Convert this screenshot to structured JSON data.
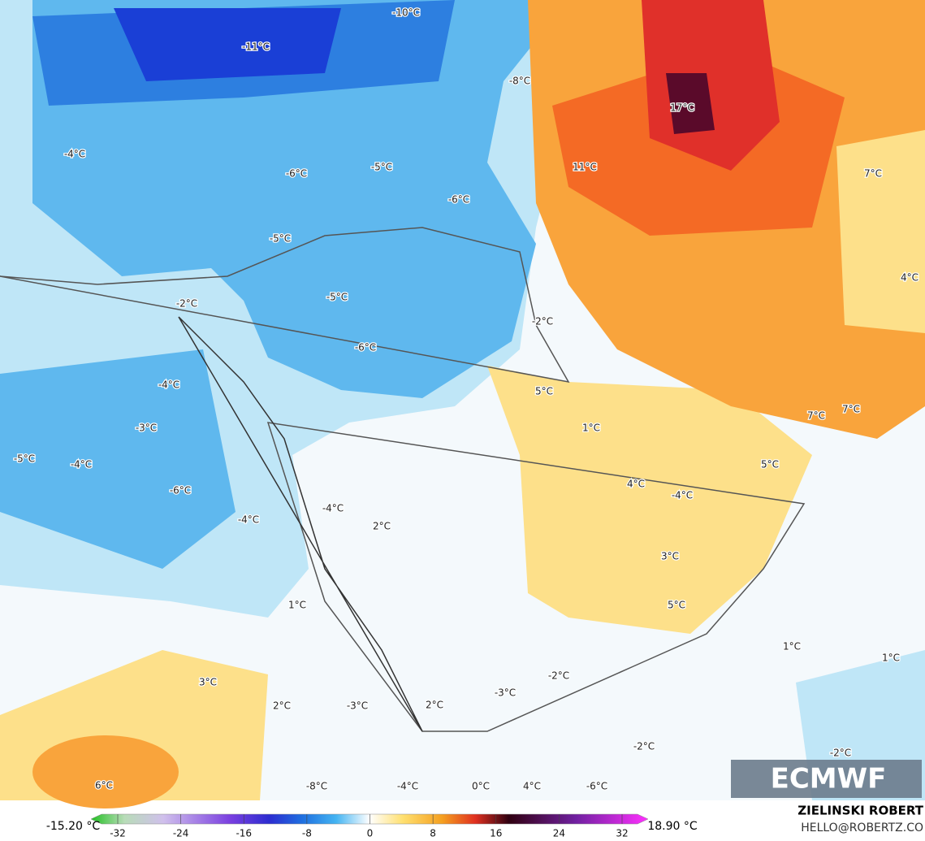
{
  "map": {
    "labels": [
      "-10°C",
      "-11°C",
      "-8°C",
      "17°C",
      "-4°C",
      "-6°C",
      "-5°C",
      "-6°C",
      "11°C",
      "7°C",
      "-5°C",
      "4°C",
      "-2°C",
      "-5°C",
      "-2°C",
      "-6°C",
      "-4°C",
      "5°C",
      "-3°C",
      "1°C",
      "7°C",
      "7°C",
      "-5°C",
      "-4°C",
      "5°C",
      "4°C",
      "-4°C",
      "-6°C",
      "-4°C",
      "-4°C",
      "2°C",
      "3°C",
      "5°C",
      "1°C",
      "1°C",
      "1°C",
      "3°C",
      "-2°C",
      "-3°C",
      "2°C",
      "-3°C",
      "2°C",
      "-2°C",
      "-2°C",
      "6°C",
      "-8°C",
      "-4°C",
      "0°C",
      "4°C",
      "-6°C"
    ]
  },
  "legend": {
    "min": "-15.20 °C",
    "max": "18.90 °C",
    "ticks": [
      -32,
      -24,
      -16,
      -8,
      0,
      8,
      16,
      24,
      32
    ]
  },
  "credits": {
    "source": "ECMWF",
    "author": "ZIELINSKI ROBERT",
    "email": "HELLO@ROBERTZ.CO"
  }
}
